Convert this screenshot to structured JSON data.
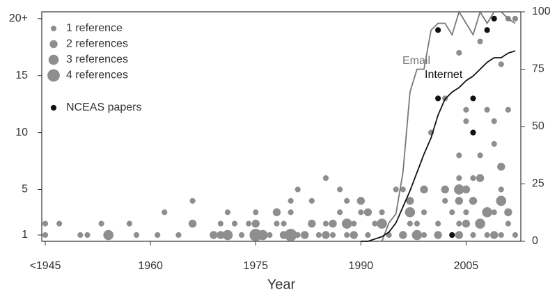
{
  "chart_data": {
    "type": "scatter",
    "x_label": "Year",
    "xlim": [
      1944.5,
      2012.8
    ],
    "xticks": [
      {
        "value": 1945,
        "label": "<1945"
      },
      1960,
      1975,
      1990,
      2005
    ],
    "ylim": [
      0.45,
      20.6
    ],
    "yticks": [
      1,
      5,
      10,
      15,
      {
        "value": 20,
        "label": "20+"
      }
    ],
    "y2lim": [
      0,
      100
    ],
    "y2ticks": [
      0,
      25,
      50,
      75,
      100
    ],
    "grid": false,
    "legend": "upper left",
    "series": [
      {
        "name": "1 reference",
        "references": 1,
        "color": "#8e8e8e",
        "x": [
          1945,
          1945,
          1947,
          1950,
          1951,
          1953,
          1954,
          1957,
          1958,
          1961,
          1962,
          1964,
          1966,
          1969,
          1970,
          1971,
          1972,
          1973,
          1974,
          1975,
          1977,
          1978,
          1979,
          1980,
          1980,
          1981,
          1981,
          1983,
          1983,
          1984,
          1985,
          1985,
          1986,
          1987,
          1987,
          1988,
          1988,
          1989,
          1990,
          1991,
          1992,
          1993,
          1994,
          1995,
          1996,
          1996,
          1997,
          1998,
          1999,
          1999,
          2000,
          2001,
          2002,
          2002,
          2003,
          2003,
          2004,
          2004,
          2004,
          2004,
          2005,
          2005,
          2005,
          2006,
          2006,
          2006,
          2007,
          2007,
          2007,
          2008,
          2008,
          2009,
          2009,
          2009,
          2010,
          2010,
          2010,
          2011,
          2011,
          2011,
          2012,
          2012
        ],
        "values": [
          2,
          1,
          2,
          1,
          1,
          2,
          1,
          2,
          1,
          1,
          3,
          1,
          4,
          1,
          2,
          3,
          2,
          1,
          2,
          3,
          1,
          2,
          2,
          3,
          4,
          5,
          1,
          2,
          4,
          1,
          6,
          2,
          1,
          3,
          5,
          4,
          1,
          2,
          3,
          1,
          2,
          3,
          1,
          5,
          5,
          1,
          2,
          2,
          3,
          1,
          10,
          2,
          4,
          13,
          1,
          3,
          17,
          6,
          8,
          2,
          11,
          12,
          3,
          1,
          6,
          10,
          8,
          18,
          2,
          12,
          1,
          9,
          11,
          3,
          16,
          5,
          1,
          12,
          2,
          20,
          20,
          1
        ]
      },
      {
        "name": "2 references",
        "references": 2,
        "color": "#8e8e8e",
        "x": [
          1966,
          1969,
          1970,
          1975,
          1978,
          1979,
          1982,
          1983,
          1985,
          1986,
          1988,
          1989,
          1990,
          1991,
          1993,
          1996,
          1997,
          1999,
          2001,
          2002,
          2004,
          2004,
          2005,
          2005,
          2006,
          2007,
          2008,
          2009,
          2010,
          2011
        ],
        "values": [
          2,
          1,
          1,
          2,
          3,
          1,
          1,
          2,
          1,
          2,
          2,
          1,
          4,
          3,
          2,
          1,
          4,
          5,
          1,
          5,
          4,
          1,
          5,
          2,
          4,
          6,
          3,
          1,
          7,
          3
        ]
      },
      {
        "name": "3 references",
        "references": 3,
        "color": "#8e8e8e",
        "x": [
          1954,
          1971,
          1976,
          1980,
          1988,
          1993,
          1997,
          1998,
          2004,
          2007,
          2008,
          2010
        ],
        "values": [
          1,
          1,
          1,
          1,
          2,
          2,
          3,
          1,
          5,
          2,
          3,
          4
        ]
      },
      {
        "name": "4 references",
        "references": 4,
        "color": "#8e8e8e",
        "x": [
          1975,
          1980
        ],
        "values": [
          1,
          1
        ]
      },
      {
        "name": "NCEAS papers",
        "references": 1,
        "color": "#111111",
        "x": [
          2001,
          2001,
          2003,
          2006,
          2006,
          2008,
          2009
        ],
        "values": [
          19,
          13,
          1,
          13,
          10,
          19,
          20
        ]
      },
      {
        "name": "Email",
        "type": "line",
        "axis": "y2",
        "color": "#777777",
        "x": [
          1993,
          1994,
          1995,
          1996,
          1997,
          1998,
          1999,
          2000,
          2001,
          2002,
          2003,
          2004,
          2005,
          2006,
          2007,
          2008,
          2009,
          2010,
          2011,
          2012
        ],
        "values": [
          0,
          8,
          12,
          30,
          65,
          75,
          75,
          92,
          95,
          95,
          90,
          100,
          95,
          90,
          100,
          95,
          100,
          100,
          97,
          95
        ]
      },
      {
        "name": "Internet",
        "type": "line",
        "axis": "y2",
        "color": "#111111",
        "x": [
          1990,
          1991,
          1992,
          1993,
          1994,
          1995,
          1996,
          1997,
          1998,
          1999,
          2000,
          2001,
          2002,
          2003,
          2004,
          2005,
          2006,
          2007,
          2008,
          2009,
          2010,
          2011,
          2012
        ],
        "values": [
          0,
          0,
          1,
          2,
          4,
          8,
          15,
          22,
          30,
          38,
          45,
          55,
          62,
          65,
          67,
          70,
          72,
          75,
          78,
          80,
          80,
          82,
          83
        ]
      }
    ]
  }
}
